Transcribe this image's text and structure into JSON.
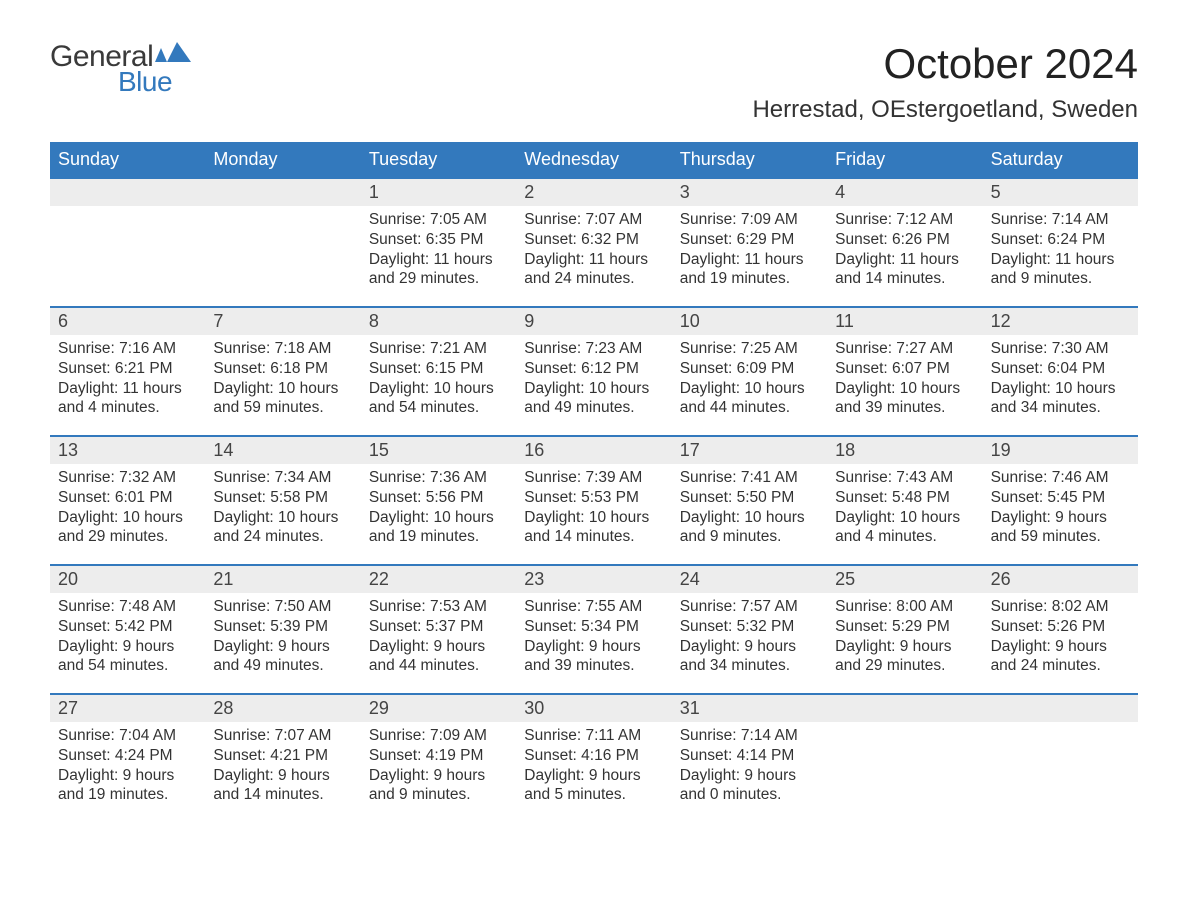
{
  "logo": {
    "text_general": "General",
    "text_blue": "Blue",
    "glyph_color": "#3379bd"
  },
  "title": {
    "month_year": "October 2024",
    "location": "Herrestad, OEstergoetland, Sweden"
  },
  "colors": {
    "header_bg": "#3379bd",
    "header_text": "#ffffff",
    "daynum_bg": "#ededed",
    "daynum_border": "#3379bd",
    "body_text": "#333333",
    "page_bg": "#ffffff"
  },
  "fonts": {
    "family": "Arial, Helvetica, sans-serif",
    "title_size_pt": 32,
    "location_size_pt": 18,
    "header_size_pt": 14,
    "daynum_size_pt": 14,
    "body_size_pt": 12
  },
  "calendar": {
    "type": "table",
    "columns": [
      "Sunday",
      "Monday",
      "Tuesday",
      "Wednesday",
      "Thursday",
      "Friday",
      "Saturday"
    ],
    "weeks": [
      {
        "days": [
          {
            "num": "",
            "lines": []
          },
          {
            "num": "",
            "lines": []
          },
          {
            "num": "1",
            "lines": [
              "Sunrise: 7:05 AM",
              "Sunset: 6:35 PM",
              "Daylight: 11 hours",
              "and 29 minutes."
            ]
          },
          {
            "num": "2",
            "lines": [
              "Sunrise: 7:07 AM",
              "Sunset: 6:32 PM",
              "Daylight: 11 hours",
              "and 24 minutes."
            ]
          },
          {
            "num": "3",
            "lines": [
              "Sunrise: 7:09 AM",
              "Sunset: 6:29 PM",
              "Daylight: 11 hours",
              "and 19 minutes."
            ]
          },
          {
            "num": "4",
            "lines": [
              "Sunrise: 7:12 AM",
              "Sunset: 6:26 PM",
              "Daylight: 11 hours",
              "and 14 minutes."
            ]
          },
          {
            "num": "5",
            "lines": [
              "Sunrise: 7:14 AM",
              "Sunset: 6:24 PM",
              "Daylight: 11 hours",
              "and 9 minutes."
            ]
          }
        ]
      },
      {
        "days": [
          {
            "num": "6",
            "lines": [
              "Sunrise: 7:16 AM",
              "Sunset: 6:21 PM",
              "Daylight: 11 hours",
              "and 4 minutes."
            ]
          },
          {
            "num": "7",
            "lines": [
              "Sunrise: 7:18 AM",
              "Sunset: 6:18 PM",
              "Daylight: 10 hours",
              "and 59 minutes."
            ]
          },
          {
            "num": "8",
            "lines": [
              "Sunrise: 7:21 AM",
              "Sunset: 6:15 PM",
              "Daylight: 10 hours",
              "and 54 minutes."
            ]
          },
          {
            "num": "9",
            "lines": [
              "Sunrise: 7:23 AM",
              "Sunset: 6:12 PM",
              "Daylight: 10 hours",
              "and 49 minutes."
            ]
          },
          {
            "num": "10",
            "lines": [
              "Sunrise: 7:25 AM",
              "Sunset: 6:09 PM",
              "Daylight: 10 hours",
              "and 44 minutes."
            ]
          },
          {
            "num": "11",
            "lines": [
              "Sunrise: 7:27 AM",
              "Sunset: 6:07 PM",
              "Daylight: 10 hours",
              "and 39 minutes."
            ]
          },
          {
            "num": "12",
            "lines": [
              "Sunrise: 7:30 AM",
              "Sunset: 6:04 PM",
              "Daylight: 10 hours",
              "and 34 minutes."
            ]
          }
        ]
      },
      {
        "days": [
          {
            "num": "13",
            "lines": [
              "Sunrise: 7:32 AM",
              "Sunset: 6:01 PM",
              "Daylight: 10 hours",
              "and 29 minutes."
            ]
          },
          {
            "num": "14",
            "lines": [
              "Sunrise: 7:34 AM",
              "Sunset: 5:58 PM",
              "Daylight: 10 hours",
              "and 24 minutes."
            ]
          },
          {
            "num": "15",
            "lines": [
              "Sunrise: 7:36 AM",
              "Sunset: 5:56 PM",
              "Daylight: 10 hours",
              "and 19 minutes."
            ]
          },
          {
            "num": "16",
            "lines": [
              "Sunrise: 7:39 AM",
              "Sunset: 5:53 PM",
              "Daylight: 10 hours",
              "and 14 minutes."
            ]
          },
          {
            "num": "17",
            "lines": [
              "Sunrise: 7:41 AM",
              "Sunset: 5:50 PM",
              "Daylight: 10 hours",
              "and 9 minutes."
            ]
          },
          {
            "num": "18",
            "lines": [
              "Sunrise: 7:43 AM",
              "Sunset: 5:48 PM",
              "Daylight: 10 hours",
              "and 4 minutes."
            ]
          },
          {
            "num": "19",
            "lines": [
              "Sunrise: 7:46 AM",
              "Sunset: 5:45 PM",
              "Daylight: 9 hours",
              "and 59 minutes."
            ]
          }
        ]
      },
      {
        "days": [
          {
            "num": "20",
            "lines": [
              "Sunrise: 7:48 AM",
              "Sunset: 5:42 PM",
              "Daylight: 9 hours",
              "and 54 minutes."
            ]
          },
          {
            "num": "21",
            "lines": [
              "Sunrise: 7:50 AM",
              "Sunset: 5:39 PM",
              "Daylight: 9 hours",
              "and 49 minutes."
            ]
          },
          {
            "num": "22",
            "lines": [
              "Sunrise: 7:53 AM",
              "Sunset: 5:37 PM",
              "Daylight: 9 hours",
              "and 44 minutes."
            ]
          },
          {
            "num": "23",
            "lines": [
              "Sunrise: 7:55 AM",
              "Sunset: 5:34 PM",
              "Daylight: 9 hours",
              "and 39 minutes."
            ]
          },
          {
            "num": "24",
            "lines": [
              "Sunrise: 7:57 AM",
              "Sunset: 5:32 PM",
              "Daylight: 9 hours",
              "and 34 minutes."
            ]
          },
          {
            "num": "25",
            "lines": [
              "Sunrise: 8:00 AM",
              "Sunset: 5:29 PM",
              "Daylight: 9 hours",
              "and 29 minutes."
            ]
          },
          {
            "num": "26",
            "lines": [
              "Sunrise: 8:02 AM",
              "Sunset: 5:26 PM",
              "Daylight: 9 hours",
              "and 24 minutes."
            ]
          }
        ]
      },
      {
        "days": [
          {
            "num": "27",
            "lines": [
              "Sunrise: 7:04 AM",
              "Sunset: 4:24 PM",
              "Daylight: 9 hours",
              "and 19 minutes."
            ]
          },
          {
            "num": "28",
            "lines": [
              "Sunrise: 7:07 AM",
              "Sunset: 4:21 PM",
              "Daylight: 9 hours",
              "and 14 minutes."
            ]
          },
          {
            "num": "29",
            "lines": [
              "Sunrise: 7:09 AM",
              "Sunset: 4:19 PM",
              "Daylight: 9 hours",
              "and 9 minutes."
            ]
          },
          {
            "num": "30",
            "lines": [
              "Sunrise: 7:11 AM",
              "Sunset: 4:16 PM",
              "Daylight: 9 hours",
              "and 5 minutes."
            ]
          },
          {
            "num": "31",
            "lines": [
              "Sunrise: 7:14 AM",
              "Sunset: 4:14 PM",
              "Daylight: 9 hours",
              "and 0 minutes."
            ]
          },
          {
            "num": "",
            "lines": []
          },
          {
            "num": "",
            "lines": []
          }
        ]
      }
    ]
  }
}
